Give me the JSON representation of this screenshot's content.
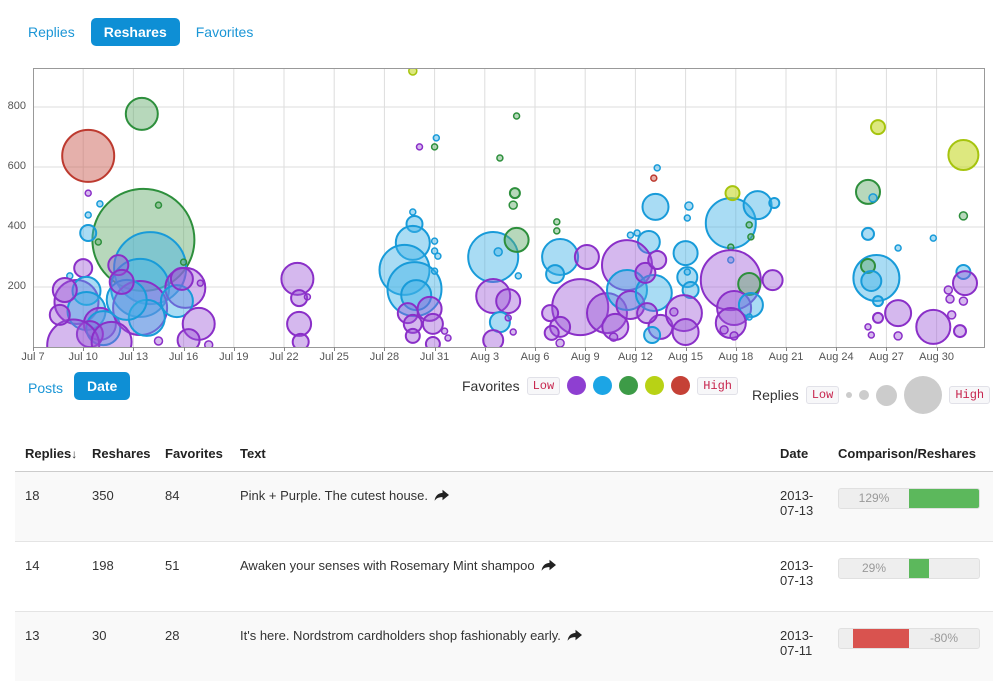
{
  "tabs": {
    "replies": "Replies",
    "reshares": "Reshares",
    "favorites": "Favorites"
  },
  "controls": {
    "posts": "Posts",
    "date": "Date"
  },
  "legend": {
    "favorites_label": "Favorites",
    "replies_label": "Replies",
    "low": "Low",
    "high": "High",
    "favorite_colors": [
      "#8e3fd1",
      "#1ca5e5",
      "#3d9b47",
      "#b8d215",
      "#c54136"
    ],
    "reply_sizes": [
      6,
      10,
      21,
      38
    ],
    "size_color": "#cccccc"
  },
  "colors": {
    "accent": "#0e8fd5",
    "link": "#1b96d6",
    "bar_positive": "#5cb85c",
    "bar_negative": "#d9534f"
  },
  "chart_data": {
    "type": "bubble",
    "title": "",
    "xlabel": "Date",
    "ylabel": "Reshares",
    "x_axis": {
      "tick_labels": [
        "Jul 7",
        "Jul 10",
        "Jul 13",
        "Jul 16",
        "Jul 19",
        "Jul 22",
        "Jul 25",
        "Jul 28",
        "Jul 31",
        "Aug 3",
        "Aug 6",
        "Aug 9",
        "Aug 12",
        "Aug 15",
        "Aug 18",
        "Aug 21",
        "Aug 24",
        "Aug 27",
        "Aug 30"
      ],
      "tick_interval_days": 3,
      "domain_days": [
        0,
        57
      ]
    },
    "y_axis": {
      "ticks": [
        200,
        400,
        600,
        800
      ],
      "ylim": [
        0,
        930
      ]
    },
    "grid": true,
    "legend_meaning": {
      "color": "Favorites level: purple=low, blue, green, yellow, red=high",
      "size": "Replies count"
    },
    "color_classes": [
      {
        "name": "purple",
        "stroke": "#8a2fc8",
        "fill": "#9a55d6",
        "opacity": 0.42
      },
      {
        "name": "blue",
        "stroke": "#189bd9",
        "fill": "#41b1e6",
        "opacity": 0.45
      },
      {
        "name": "green",
        "stroke": "#2d8f3c",
        "fill": "#5fa968",
        "opacity": 0.45
      },
      {
        "name": "yellow",
        "stroke": "#a6c40e",
        "fill": "#c6d92a",
        "opacity": 0.6
      },
      {
        "name": "red",
        "stroke": "#bd3a2f",
        "fill": "#cc6257",
        "opacity": 0.5
      }
    ],
    "bubble_fields": [
      "days_after_jul7",
      "value",
      "radius_px",
      "color_index"
    ],
    "bubbles": [
      [
        3.3,
        637,
        26,
        4
      ],
      [
        6.5,
        777,
        16,
        2
      ],
      [
        6.6,
        357,
        51,
        2
      ],
      [
        7.0,
        263,
        36,
        1
      ],
      [
        3.3,
        513,
        3,
        0
      ],
      [
        4.0,
        477,
        3,
        1
      ],
      [
        3.3,
        440,
        3,
        1
      ],
      [
        3.3,
        380,
        8,
        1
      ],
      [
        3.9,
        350,
        3,
        2
      ],
      [
        7.5,
        473,
        3,
        2
      ],
      [
        9.0,
        283,
        3,
        2
      ],
      [
        2.2,
        237,
        3,
        1
      ],
      [
        3.0,
        263,
        9,
        0
      ],
      [
        2.6,
        150,
        22,
        0
      ],
      [
        3.2,
        187,
        14,
        1
      ],
      [
        3.2,
        120,
        19,
        1
      ],
      [
        4.0,
        77,
        16,
        0
      ],
      [
        4.2,
        63,
        17,
        1
      ],
      [
        3.4,
        43,
        13,
        0
      ],
      [
        2.4,
        5,
        26,
        0
      ],
      [
        6.4,
        197,
        29,
        1
      ],
      [
        6.4,
        130,
        27,
        0
      ],
      [
        6.8,
        97,
        18,
        1
      ],
      [
        5.6,
        157,
        20,
        1
      ],
      [
        9.1,
        197,
        20,
        0
      ],
      [
        8.6,
        153,
        16,
        1
      ],
      [
        8.9,
        227,
        11,
        0
      ],
      [
        10.0,
        213,
        3,
        0
      ],
      [
        9.9,
        77,
        16,
        0
      ],
      [
        9.3,
        23,
        11,
        0
      ],
      [
        7.5,
        20,
        4,
        0
      ],
      [
        10.5,
        7,
        4,
        0
      ],
      [
        5.1,
        273,
        10,
        0
      ],
      [
        5.3,
        217,
        12,
        0
      ],
      [
        1.9,
        190,
        12,
        0
      ],
      [
        1.6,
        107,
        10,
        0
      ],
      [
        4.7,
        17,
        20,
        0
      ],
      [
        15.8,
        227,
        16,
        0
      ],
      [
        15.9,
        163,
        8,
        0
      ],
      [
        15.9,
        77,
        12,
        0
      ],
      [
        16.0,
        17,
        8,
        0
      ],
      [
        16.4,
        167,
        3,
        0
      ],
      [
        22.7,
        920,
        4,
        3
      ],
      [
        24.1,
        697,
        3,
        1
      ],
      [
        23.1,
        667,
        3,
        0
      ],
      [
        24.0,
        667,
        3,
        2
      ],
      [
        27.9,
        630,
        3,
        2
      ],
      [
        28.8,
        513,
        5,
        2
      ],
      [
        28.7,
        473,
        4,
        2
      ],
      [
        22.7,
        450,
        3,
        1
      ],
      [
        22.8,
        410,
        8,
        1
      ],
      [
        22.7,
        347,
        17,
        1
      ],
      [
        22.2,
        257,
        25,
        1
      ],
      [
        22.8,
        193,
        27,
        1
      ],
      [
        22.9,
        173,
        15,
        1
      ],
      [
        24.0,
        353,
        3,
        1
      ],
      [
        24.0,
        320,
        3,
        1
      ],
      [
        24.2,
        303,
        3,
        1
      ],
      [
        24.0,
        253,
        3,
        1
      ],
      [
        22.4,
        113,
        10,
        0
      ],
      [
        22.7,
        77,
        9,
        0
      ],
      [
        23.7,
        127,
        12,
        0
      ],
      [
        23.9,
        77,
        10,
        0
      ],
      [
        22.7,
        37,
        7,
        0
      ],
      [
        24.6,
        53,
        3,
        0
      ],
      [
        24.8,
        30,
        3,
        0
      ],
      [
        23.9,
        10,
        7,
        0
      ],
      [
        27.5,
        300,
        25,
        1
      ],
      [
        28.9,
        357,
        12,
        2
      ],
      [
        27.8,
        317,
        4,
        1
      ],
      [
        29.0,
        237,
        3,
        1
      ],
      [
        28.9,
        770,
        3,
        2
      ],
      [
        27.5,
        170,
        17,
        0
      ],
      [
        28.4,
        153,
        12,
        0
      ],
      [
        27.9,
        83,
        10,
        1
      ],
      [
        27.5,
        23,
        10,
        0
      ],
      [
        28.4,
        97,
        3,
        0
      ],
      [
        28.7,
        50,
        3,
        0
      ],
      [
        31.3,
        417,
        3,
        2
      ],
      [
        31.3,
        387,
        3,
        2
      ],
      [
        31.5,
        300,
        18,
        1
      ],
      [
        31.2,
        243,
        9,
        1
      ],
      [
        33.1,
        300,
        12,
        0
      ],
      [
        32.7,
        133,
        28,
        0
      ],
      [
        30.9,
        113,
        8,
        0
      ],
      [
        31.5,
        67,
        10,
        0
      ],
      [
        31.0,
        47,
        7,
        0
      ],
      [
        34.3,
        113,
        20,
        0
      ],
      [
        34.8,
        67,
        13,
        0
      ],
      [
        31.5,
        13,
        4,
        0
      ],
      [
        37.3,
        597,
        3,
        1
      ],
      [
        37.1,
        563,
        3,
        4
      ],
      [
        37.2,
        467,
        13,
        1
      ],
      [
        36.8,
        350,
        11,
        1
      ],
      [
        35.7,
        373,
        3,
        1
      ],
      [
        36.1,
        380,
        3,
        1
      ],
      [
        35.5,
        273,
        25,
        0
      ],
      [
        35.5,
        190,
        20,
        1
      ],
      [
        35.7,
        140,
        14,
        0
      ],
      [
        37.1,
        180,
        18,
        1
      ],
      [
        36.6,
        247,
        10,
        0
      ],
      [
        37.3,
        290,
        9,
        0
      ],
      [
        37.5,
        67,
        12,
        0
      ],
      [
        36.7,
        113,
        10,
        0
      ],
      [
        37.0,
        40,
        8,
        1
      ],
      [
        34.7,
        33,
        4,
        0
      ],
      [
        39.0,
        313,
        12,
        1
      ],
      [
        39.1,
        233,
        10,
        1
      ],
      [
        39.3,
        190,
        8,
        1
      ],
      [
        38.9,
        113,
        18,
        0
      ],
      [
        39.0,
        50,
        13,
        0
      ],
      [
        39.1,
        250,
        3,
        1
      ],
      [
        38.3,
        117,
        4,
        0
      ],
      [
        39.2,
        470,
        4,
        1
      ],
      [
        39.1,
        430,
        3,
        1
      ],
      [
        41.7,
        413,
        25,
        1
      ],
      [
        43.3,
        473,
        14,
        1
      ],
      [
        41.8,
        513,
        7,
        3
      ],
      [
        42.8,
        407,
        3,
        2
      ],
      [
        42.9,
        367,
        3,
        2
      ],
      [
        41.7,
        333,
        3,
        2
      ],
      [
        41.7,
        290,
        3,
        1
      ],
      [
        41.7,
        223,
        30,
        0
      ],
      [
        42.8,
        210,
        11,
        2
      ],
      [
        41.9,
        130,
        17,
        0
      ],
      [
        42.9,
        140,
        12,
        1
      ],
      [
        41.7,
        80,
        15,
        0
      ],
      [
        42.8,
        100,
        3,
        1
      ],
      [
        41.3,
        57,
        4,
        0
      ],
      [
        41.9,
        37,
        4,
        0
      ],
      [
        44.2,
        223,
        10,
        0
      ],
      [
        44.3,
        480,
        5,
        1
      ],
      [
        50.5,
        733,
        7,
        3
      ],
      [
        49.9,
        517,
        12,
        2
      ],
      [
        50.2,
        497,
        4,
        1
      ],
      [
        49.9,
        377,
        6,
        1
      ],
      [
        51.7,
        330,
        3,
        1
      ],
      [
        50.4,
        230,
        23,
        1
      ],
      [
        49.9,
        270,
        7,
        2
      ],
      [
        50.1,
        220,
        10,
        1
      ],
      [
        50.5,
        153,
        5,
        1
      ],
      [
        51.7,
        113,
        13,
        0
      ],
      [
        50.5,
        97,
        5,
        0
      ],
      [
        49.9,
        67,
        3,
        0
      ],
      [
        50.1,
        40,
        3,
        0
      ],
      [
        51.7,
        37,
        4,
        0
      ],
      [
        53.8,
        363,
        3,
        1
      ],
      [
        53.8,
        67,
        17,
        0
      ],
      [
        55.6,
        640,
        15,
        3
      ],
      [
        55.6,
        437,
        4,
        2
      ],
      [
        55.6,
        250,
        7,
        1
      ],
      [
        55.7,
        213,
        12,
        0
      ],
      [
        54.7,
        190,
        4,
        0
      ],
      [
        54.8,
        160,
        4,
        0
      ],
      [
        55.6,
        153,
        4,
        0
      ],
      [
        55.4,
        53,
        6,
        0
      ],
      [
        54.9,
        107,
        4,
        0
      ]
    ]
  },
  "table": {
    "headers": [
      "Replies",
      "Reshares",
      "Favorites",
      "Text",
      "Date",
      "Comparison/Reshares"
    ],
    "sort_column": "Replies",
    "sort_icon": "↓",
    "rows": [
      {
        "replies": "18",
        "reshares": "350",
        "favorites": "84",
        "text": "Pink + Purple. The cutest house.",
        "date": "2013-07-13",
        "comparison_pct": 129,
        "comparison_label": "129%"
      },
      {
        "replies": "14",
        "reshares": "198",
        "favorites": "51",
        "text": "Awaken your senses with Rosemary Mint shampoo",
        "date": "2013-07-13",
        "comparison_pct": 29,
        "comparison_label": "29%"
      },
      {
        "replies": "13",
        "reshares": "30",
        "favorites": "28",
        "text": "It's here. Nordstrom cardholders shop fashionably early.",
        "date": "2013-07-11",
        "comparison_pct": -80,
        "comparison_label": "-80%"
      }
    ]
  }
}
